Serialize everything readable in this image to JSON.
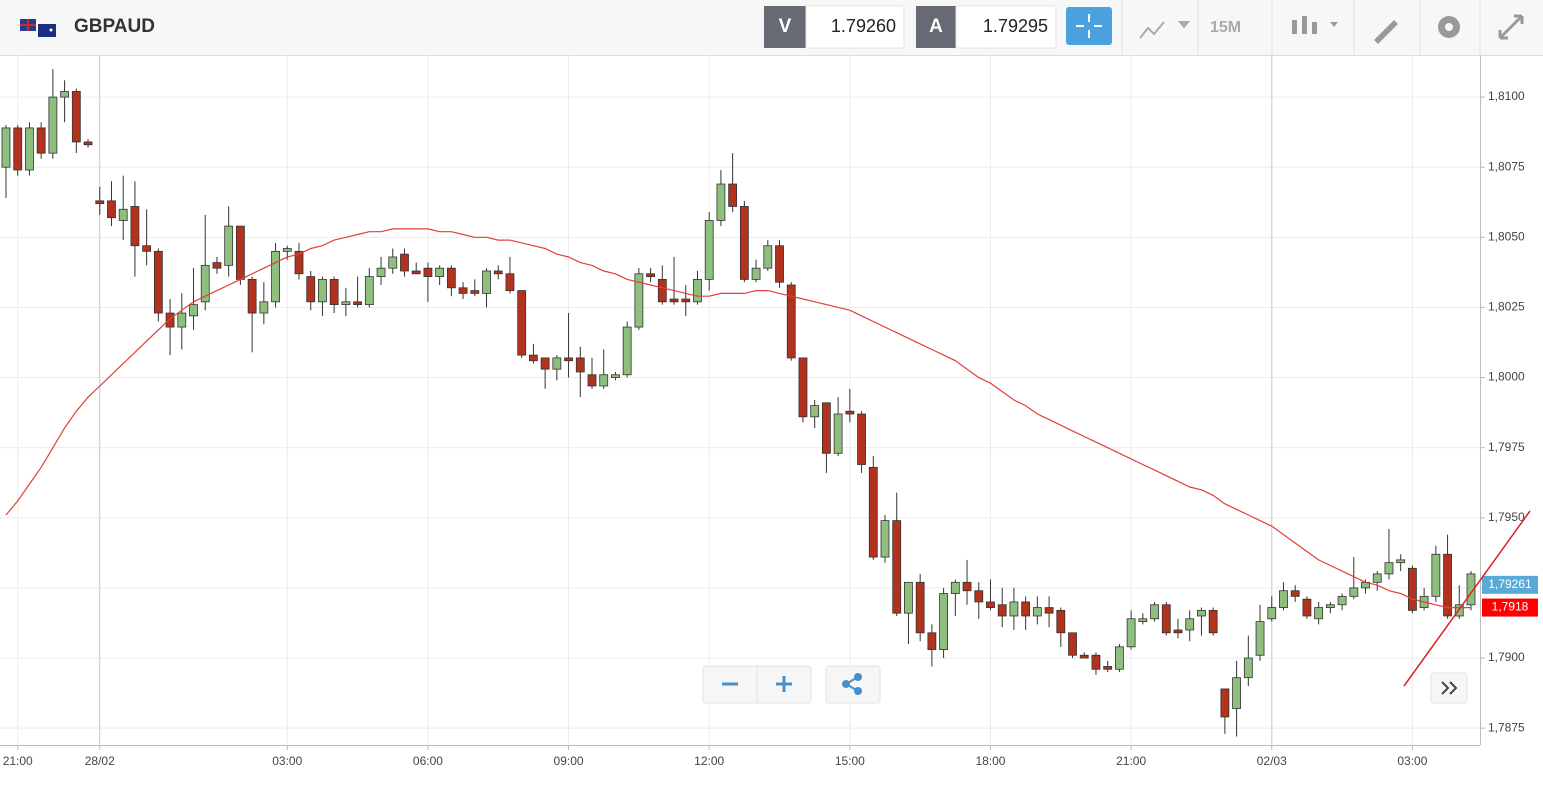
{
  "header": {
    "symbol": "GBPAUD",
    "bid_label": "V",
    "bid": "1.79260",
    "ask_label": "A",
    "ask": "1.79295",
    "timeframe": "15M"
  },
  "chart_data": {
    "type": "candlestick",
    "categories": [
      null,
      "21:00",
      null,
      null,
      null,
      null,
      null,
      null,
      "28/02",
      null,
      null,
      null,
      null,
      null,
      null,
      null,
      null,
      null,
      null,
      null,
      null,
      null,
      null,
      null,
      "03:00",
      null,
      null,
      null,
      null,
      null,
      null,
      null,
      null,
      null,
      null,
      null,
      "06:00",
      null,
      null,
      null,
      null,
      null,
      null,
      null,
      null,
      null,
      null,
      null,
      "09:00",
      null,
      null,
      null,
      null,
      null,
      null,
      null,
      null,
      null,
      null,
      null,
      "12:00",
      null,
      null,
      null,
      null,
      null,
      null,
      null,
      null,
      null,
      null,
      null,
      "15:00",
      null,
      null,
      null,
      null,
      null,
      null,
      null,
      null,
      null,
      null,
      null,
      "18:00",
      null,
      null,
      null,
      null,
      null,
      null,
      null,
      null,
      null,
      null,
      null,
      "21:00",
      null,
      null,
      null,
      null,
      null,
      null,
      null,
      null,
      null,
      null,
      null,
      "02/03",
      null,
      null,
      null,
      null,
      null,
      null,
      null,
      null,
      null,
      null,
      null,
      "03:00",
      null,
      null,
      null,
      null,
      null
    ],
    "open": [
      1.8075,
      1.8089,
      1.8074,
      1.8089,
      1.808,
      1.81,
      1.8102,
      1.8084,
      1.8063,
      1.8063,
      1.8056,
      1.8061,
      1.8047,
      1.8045,
      1.8023,
      1.8018,
      1.8022,
      1.8027,
      1.8041,
      1.804,
      1.8054,
      1.8035,
      1.8023,
      1.8027,
      1.8045,
      1.8045,
      1.8036,
      1.8027,
      1.8035,
      1.8026,
      1.8027,
      1.8026,
      1.8036,
      1.8039,
      1.8044,
      1.8038,
      1.8039,
      1.8036,
      1.8039,
      1.8032,
      1.8031,
      1.803,
      1.8038,
      1.8037,
      1.8031,
      1.8008,
      1.8007,
      1.8003,
      1.8007,
      1.8007,
      1.8001,
      1.7997,
      1.8,
      1.8001,
      1.8018,
      1.8037,
      1.8035,
      1.8028,
      1.8028,
      1.8027,
      1.8035,
      1.8056,
      1.8069,
      1.8061,
      1.8035,
      1.8039,
      1.8047,
      1.8033,
      1.8007,
      1.7986,
      1.7991,
      1.7973,
      1.7988,
      1.7987,
      1.7968,
      1.7936,
      1.7949,
      1.7916,
      1.7927,
      1.7909,
      1.7903,
      1.7923,
      1.7927,
      1.7924,
      1.792,
      1.7919,
      1.7915,
      1.792,
      1.7915,
      1.7918,
      1.7917,
      1.7909,
      1.7901,
      1.7901,
      1.7897,
      1.7896,
      1.7904,
      1.7913,
      1.7914,
      1.7919,
      1.791,
      1.791,
      1.7915,
      1.7917,
      1.7889,
      1.7882,
      1.7893,
      1.7901,
      1.7914,
      1.7918,
      1.7924,
      1.7921,
      1.7914,
      1.7918,
      1.7919,
      1.7922,
      1.7925,
      1.7927,
      1.793,
      1.7934,
      1.7932,
      1.7918,
      1.7922,
      1.7937,
      1.7915,
      1.7919
    ],
    "high": [
      1.809,
      1.809,
      1.8091,
      1.8091,
      1.811,
      1.8106,
      1.8103,
      1.8085,
      1.8068,
      1.807,
      1.8072,
      1.807,
      1.806,
      1.8046,
      1.8028,
      1.803,
      1.8039,
      1.8058,
      1.8043,
      1.8061,
      1.8054,
      1.8036,
      1.8034,
      1.8048,
      1.8047,
      1.8048,
      1.8038,
      1.8036,
      1.8036,
      1.8032,
      1.8036,
      1.8039,
      1.8043,
      1.8046,
      1.8046,
      1.8041,
      1.8041,
      1.804,
      1.804,
      1.8034,
      1.8035,
      1.8039,
      1.804,
      1.8043,
      1.8031,
      1.8012,
      1.8007,
      1.8008,
      1.8023,
      1.8011,
      1.8007,
      1.801,
      1.8002,
      1.802,
      1.8039,
      1.8039,
      1.804,
      1.8043,
      1.8033,
      1.8038,
      1.8059,
      1.8074,
      1.808,
      1.8063,
      1.8042,
      1.8049,
      1.8049,
      1.8034,
      1.8007,
      1.7992,
      1.7991,
      1.7993,
      1.7996,
      1.7988,
      1.7972,
      1.7951,
      1.7959,
      1.7927,
      1.793,
      1.7912,
      1.7925,
      1.7928,
      1.7935,
      1.7927,
      1.7928,
      1.7925,
      1.7925,
      1.7922,
      1.7922,
      1.7922,
      1.7918,
      1.7909,
      1.7902,
      1.7902,
      1.7899,
      1.7905,
      1.7917,
      1.7916,
      1.792,
      1.792,
      1.7914,
      1.7917,
      1.7918,
      1.7918,
      1.7889,
      1.7899,
      1.7908,
      1.7919,
      1.7922,
      1.7927,
      1.7926,
      1.7922,
      1.792,
      1.792,
      1.7923,
      1.7936,
      1.7928,
      1.7931,
      1.7946,
      1.7937,
      1.7933,
      1.7925,
      1.794,
      1.7944,
      1.7926,
      1.7931
    ],
    "low": [
      1.8064,
      1.8072,
      1.8072,
      1.8078,
      1.8078,
      1.8091,
      1.808,
      1.8082,
      1.8058,
      1.8054,
      1.8049,
      1.8036,
      1.804,
      1.802,
      1.8008,
      1.801,
      1.8017,
      1.8024,
      1.8037,
      1.8036,
      1.8033,
      1.8009,
      1.8019,
      1.8025,
      1.8042,
      1.8035,
      1.8024,
      1.8022,
      1.8023,
      1.8022,
      1.8025,
      1.8025,
      1.8033,
      1.8037,
      1.8036,
      1.8037,
      1.8027,
      1.8033,
      1.8029,
      1.8028,
      1.8029,
      1.8025,
      1.8035,
      1.803,
      1.8007,
      1.8005,
      1.7996,
      1.7999,
      1.8,
      1.7993,
      1.7996,
      1.7996,
      1.7999,
      1.8,
      1.8017,
      1.8034,
      1.8026,
      1.8026,
      1.8022,
      1.8026,
      1.8031,
      1.8054,
      1.8059,
      1.8034,
      1.8034,
      1.8038,
      1.8032,
      1.8006,
      1.7984,
      1.7982,
      1.7966,
      1.7972,
      1.7984,
      1.7966,
      1.7935,
      1.7934,
      1.7915,
      1.7905,
      1.7906,
      1.7897,
      1.79,
      1.7915,
      1.7919,
      1.7914,
      1.7917,
      1.7911,
      1.791,
      1.791,
      1.7912,
      1.7911,
      1.7904,
      1.79,
      1.79,
      1.7894,
      1.7895,
      1.7895,
      1.7903,
      1.7912,
      1.7913,
      1.7908,
      1.7907,
      1.7906,
      1.7908,
      1.7908,
      1.7873,
      1.7872,
      1.789,
      1.7899,
      1.7913,
      1.7917,
      1.792,
      1.7914,
      1.7912,
      1.7916,
      1.7917,
      1.7921,
      1.7923,
      1.7924,
      1.7928,
      1.7931,
      1.7916,
      1.7917,
      1.792,
      1.7914,
      1.7914,
      1.7917
    ],
    "close": [
      1.8089,
      1.8074,
      1.8089,
      1.808,
      1.81,
      1.8102,
      1.8084,
      1.8083,
      1.8062,
      1.8057,
      1.806,
      1.8047,
      1.8045,
      1.8023,
      1.8018,
      1.8023,
      1.8026,
      1.804,
      1.8039,
      1.8054,
      1.8035,
      1.8023,
      1.8027,
      1.8045,
      1.8046,
      1.8037,
      1.8027,
      1.8035,
      1.8026,
      1.8027,
      1.8026,
      1.8036,
      1.8039,
      1.8043,
      1.8038,
      1.8037,
      1.8036,
      1.8039,
      1.8032,
      1.803,
      1.803,
      1.8038,
      1.8037,
      1.8031,
      1.8008,
      1.8006,
      1.8003,
      1.8007,
      1.8006,
      1.8002,
      1.7997,
      1.8001,
      1.8001,
      1.8018,
      1.8037,
      1.8036,
      1.8027,
      1.8027,
      1.8027,
      1.8035,
      1.8056,
      1.8069,
      1.8061,
      1.8035,
      1.8039,
      1.8047,
      1.8034,
      1.8007,
      1.7986,
      1.799,
      1.7973,
      1.7987,
      1.7987,
      1.7969,
      1.7936,
      1.7949,
      1.7916,
      1.7927,
      1.7909,
      1.7903,
      1.7923,
      1.7927,
      1.7924,
      1.792,
      1.7918,
      1.7915,
      1.792,
      1.7915,
      1.7918,
      1.7916,
      1.7909,
      1.7901,
      1.79,
      1.7896,
      1.7896,
      1.7904,
      1.7914,
      1.7914,
      1.7919,
      1.7909,
      1.7909,
      1.7914,
      1.7917,
      1.7909,
      1.7879,
      1.7893,
      1.79,
      1.7913,
      1.7918,
      1.7924,
      1.7922,
      1.7915,
      1.7918,
      1.7919,
      1.7922,
      1.7925,
      1.7927,
      1.793,
      1.7934,
      1.7935,
      1.7917,
      1.7922,
      1.7937,
      1.7915,
      1.7919,
      1.793
    ],
    "up_color": "#8fbf7f",
    "down_color": "#b2321d",
    "ma": {
      "color": "#e0403a",
      "values": [
        1.7951,
        1.7956,
        1.7962,
        1.7968,
        1.7975,
        1.7982,
        1.7988,
        1.7993,
        1.7997,
        1.8001,
        1.8005,
        1.8009,
        1.8013,
        1.8017,
        1.8021,
        1.8024,
        1.8027,
        1.8029,
        1.8031,
        1.8033,
        1.8035,
        1.8037,
        1.8039,
        1.8041,
        1.8043,
        1.8044,
        1.8046,
        1.8047,
        1.8049,
        1.805,
        1.8051,
        1.8052,
        1.8052,
        1.8053,
        1.8053,
        1.8053,
        1.8053,
        1.8052,
        1.8052,
        1.8051,
        1.805,
        1.805,
        1.8049,
        1.8049,
        1.8048,
        1.8047,
        1.8046,
        1.8044,
        1.8043,
        1.8041,
        1.804,
        1.8038,
        1.8037,
        1.8035,
        1.8034,
        1.8033,
        1.8032,
        1.8031,
        1.803,
        1.8029,
        1.8029,
        1.803,
        1.803,
        1.803,
        1.8031,
        1.8031,
        1.803,
        1.8029,
        1.8028,
        1.8027,
        1.8026,
        1.8025,
        1.8024,
        1.8022,
        1.802,
        1.8018,
        1.8016,
        1.8014,
        1.8012,
        1.801,
        1.8008,
        1.8006,
        1.8003,
        1.8,
        1.7998,
        1.7995,
        1.7992,
        1.799,
        1.7987,
        1.7985,
        1.7983,
        1.7981,
        1.7979,
        1.7977,
        1.7975,
        1.7973,
        1.7971,
        1.7969,
        1.7967,
        1.7965,
        1.7963,
        1.7961,
        1.796,
        1.7958,
        1.7955,
        1.7953,
        1.7951,
        1.7949,
        1.7947,
        1.7944,
        1.7941,
        1.7938,
        1.7935,
        1.7933,
        1.7931,
        1.7929,
        1.7927,
        1.7926,
        1.7924,
        1.7923,
        1.7921,
        1.792,
        1.7919,
        1.7918,
        1.7918,
        1.7918
      ]
    },
    "ylim": [
      1.7869,
      1.8115
    ],
    "yticks": [
      {
        "value": 1.7875,
        "label": "1,7875"
      },
      {
        "value": 1.79,
        "label": "1,7900"
      },
      {
        "value": 1.7925,
        "label": "1,7925"
      },
      {
        "value": 1.795,
        "label": "1,7950"
      },
      {
        "value": 1.7975,
        "label": "1,7975"
      },
      {
        "value": 1.8,
        "label": "1,8000"
      },
      {
        "value": 1.8025,
        "label": "1,8025"
      },
      {
        "value": 1.805,
        "label": "1,8050"
      },
      {
        "value": 1.8075,
        "label": "1,8075"
      },
      {
        "value": 1.81,
        "label": "1,8100"
      }
    ],
    "grid": true,
    "price_tags": [
      {
        "value": 1.79261,
        "label": "1,79261",
        "color": "#5aaad8"
      },
      {
        "value": 1.7918,
        "label": "1,7918",
        "color": "#ff0000"
      }
    ]
  }
}
